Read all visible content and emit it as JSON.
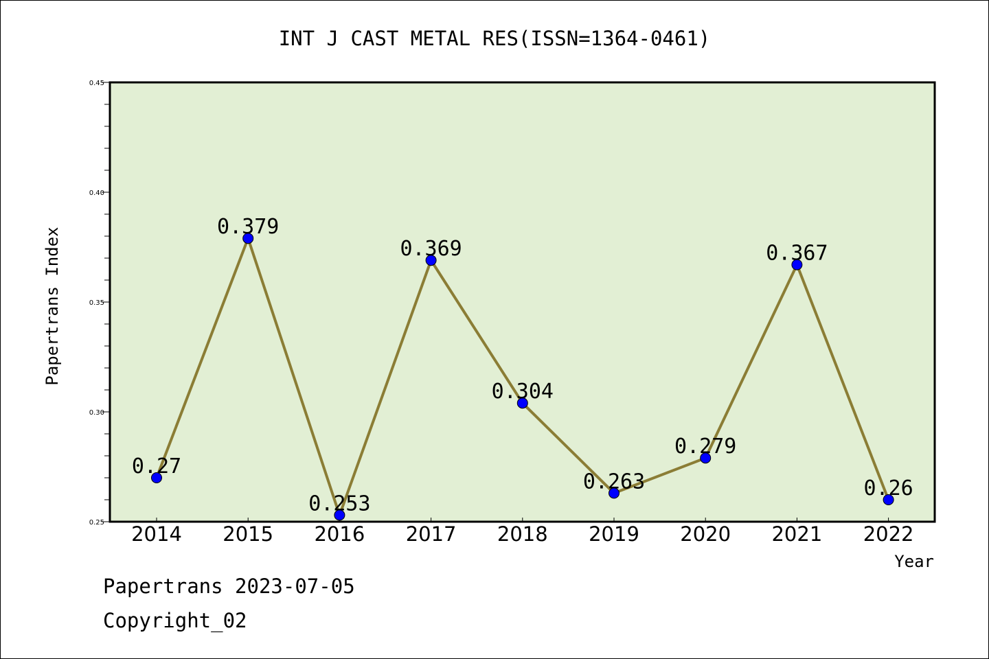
{
  "chart_data": {
    "type": "line",
    "title": "INT J CAST METAL RES(ISSN=1364-0461)",
    "xlabel": "Year",
    "ylabel": "Papertrans Index",
    "categories": [
      "2014",
      "2015",
      "2016",
      "2017",
      "2018",
      "2019",
      "2020",
      "2021",
      "2022"
    ],
    "values": [
      0.27,
      0.379,
      0.253,
      0.369,
      0.304,
      0.263,
      0.279,
      0.367,
      0.26
    ],
    "data_labels": [
      "0.27",
      "0.379",
      "0.253",
      "0.369",
      "0.304",
      "0.263",
      "0.279",
      "0.367",
      "0.26"
    ],
    "ylim": [
      0.25,
      0.45
    ],
    "yticks": [
      "0.25",
      "0.30",
      "0.35",
      "0.40",
      "0.45"
    ],
    "grid": false,
    "colors": {
      "plot_background": "#e2efd4",
      "line": "#8b7d35",
      "marker": "#0000ff"
    }
  },
  "footer": {
    "line1": "Papertrans 2023-07-05",
    "line2": "Copyright_02"
  }
}
